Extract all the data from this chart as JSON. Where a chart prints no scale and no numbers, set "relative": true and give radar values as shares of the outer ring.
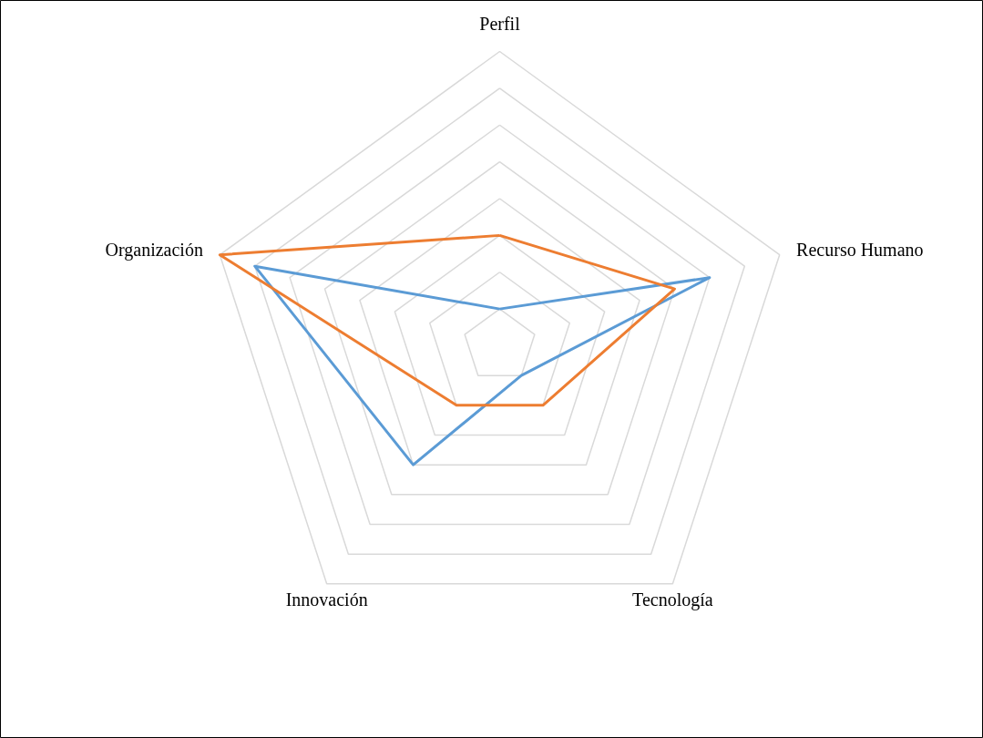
{
  "chart_data": {
    "type": "radar",
    "relative": true,
    "grid": true,
    "legend": false,
    "categories": [
      "Perfil",
      "Recurso Humano",
      "Tecnología",
      "Innovación",
      "Organización"
    ],
    "series": [
      {
        "color": "#5b9bd5",
        "values": [
          0.125,
          0.75,
          0.125,
          0.5,
          0.875
        ]
      },
      {
        "color": "#ed7d31",
        "values": [
          0.375,
          0.625,
          0.25,
          0.25,
          1.0
        ]
      }
    ]
  }
}
